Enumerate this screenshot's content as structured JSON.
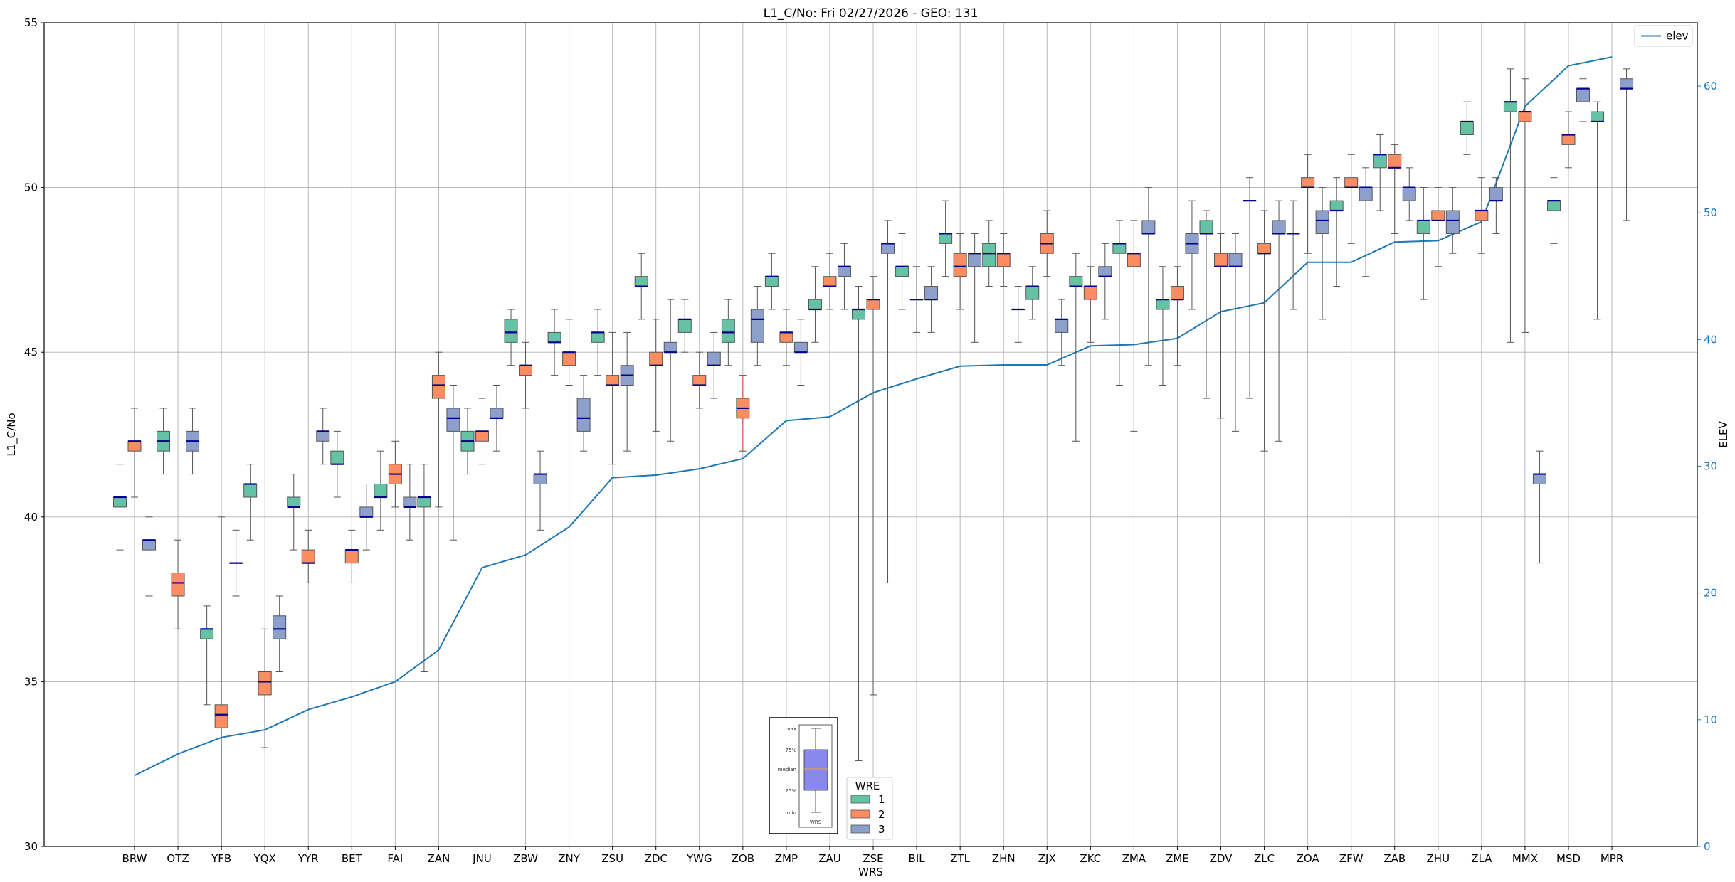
{
  "chart_data": {
    "type": "box",
    "title": "L1_C/No: Fri 02/27/2026 - GEO: 131",
    "xlabel": "WRS",
    "ylabel": "L1_C/No",
    "y2label": "ELEV",
    "ylim": [
      30,
      55
    ],
    "y2lim": [
      0,
      65
    ],
    "yticks": [
      30,
      35,
      40,
      45,
      50,
      55
    ],
    "y2ticks": [
      0,
      10,
      20,
      30,
      40,
      50,
      60
    ],
    "grid": true,
    "categories": [
      "BRW",
      "OTZ",
      "YFB",
      "YQX",
      "YYR",
      "BET",
      "FAI",
      "ZAN",
      "JNU",
      "ZBW",
      "ZNY",
      "ZSU",
      "ZDC",
      "YWG",
      "ZOB",
      "ZMP",
      "ZAU",
      "ZSE",
      "BIL",
      "ZTL",
      "ZHN",
      "ZJX",
      "ZKC",
      "ZMA",
      "ZME",
      "ZDV",
      "ZLC",
      "ZOA",
      "ZFW",
      "ZAB",
      "ZHU",
      "ZLA",
      "MMX",
      "MSD",
      "MPR"
    ],
    "wre_legend": {
      "title": "WRE",
      "entries": [
        "1",
        "2",
        "3"
      ]
    },
    "line_legend": "elev",
    "colors": {
      "wre1": "#66c2a5",
      "wre2": "#fc8d62",
      "wre3": "#8da0cb",
      "median": "#00008b",
      "elev": "#1f77b4",
      "whisker": "#555555",
      "highlight_whisker": "#e03030"
    },
    "box_key": {
      "labels": [
        "max",
        "75%",
        "median",
        "25%",
        "min"
      ],
      "xlabel": "WRS"
    },
    "elev": [
      5.6,
      7.3,
      8.6,
      9.2,
      10.8,
      11.8,
      13.0,
      15.5,
      22.0,
      23.0,
      25.2,
      29.1,
      29.3,
      29.8,
      30.6,
      33.6,
      33.9,
      35.8,
      36.9,
      37.9,
      38.0,
      38.0,
      39.5,
      39.6,
      40.1,
      42.2,
      42.9,
      46.1,
      46.1,
      47.7,
      47.8,
      49.3,
      58.4,
      61.6,
      62.3
    ],
    "boxes": [
      {
        "site": "BRW",
        "wre": 1,
        "min": 39.0,
        "q1": 40.3,
        "median": 40.6,
        "q3": 40.6,
        "max": 41.6
      },
      {
        "site": "BRW",
        "wre": 2,
        "min": 40.6,
        "q1": 42.0,
        "median": 42.3,
        "q3": 42.3,
        "max": 43.3
      },
      {
        "site": "BRW",
        "wre": 3,
        "min": 37.6,
        "q1": 39.0,
        "median": 39.3,
        "q3": 39.3,
        "max": 40.0
      },
      {
        "site": "OTZ",
        "wre": 1,
        "min": 41.3,
        "q1": 42.0,
        "median": 42.3,
        "q3": 42.6,
        "max": 43.3
      },
      {
        "site": "OTZ",
        "wre": 2,
        "min": 36.6,
        "q1": 37.6,
        "median": 38.0,
        "q3": 38.3,
        "max": 39.3
      },
      {
        "site": "OTZ",
        "wre": 3,
        "min": 41.3,
        "q1": 42.0,
        "median": 42.3,
        "q3": 42.6,
        "max": 43.3
      },
      {
        "site": "YFB",
        "wre": 1,
        "min": 34.3,
        "q1": 36.3,
        "median": 36.6,
        "q3": 36.6,
        "max": 37.3
      },
      {
        "site": "YFB",
        "wre": 2,
        "min": 30.0,
        "q1": 33.6,
        "median": 34.0,
        "q3": 34.3,
        "max": 40.0
      },
      {
        "site": "YFB",
        "wre": 3,
        "min": 37.6,
        "q1": 38.6,
        "median": 38.6,
        "q3": 38.6,
        "max": 39.6
      },
      {
        "site": "YQX",
        "wre": 1,
        "min": 39.3,
        "q1": 40.6,
        "median": 41.0,
        "q3": 41.0,
        "max": 41.6
      },
      {
        "site": "YQX",
        "wre": 2,
        "min": 33.0,
        "q1": 34.6,
        "median": 35.0,
        "q3": 35.3,
        "max": 36.6
      },
      {
        "site": "YQX",
        "wre": 3,
        "min": 35.3,
        "q1": 36.3,
        "median": 36.6,
        "q3": 37.0,
        "max": 37.6
      },
      {
        "site": "YYR",
        "wre": 1,
        "min": 39.0,
        "q1": 40.3,
        "median": 40.3,
        "q3": 40.6,
        "max": 41.3
      },
      {
        "site": "YYR",
        "wre": 2,
        "min": 38.0,
        "q1": 38.6,
        "median": 38.6,
        "q3": 39.0,
        "max": 39.6
      },
      {
        "site": "YYR",
        "wre": 3,
        "min": 41.6,
        "q1": 42.3,
        "median": 42.6,
        "q3": 42.6,
        "max": 43.3
      },
      {
        "site": "BET",
        "wre": 1,
        "min": 40.6,
        "q1": 41.6,
        "median": 41.6,
        "q3": 42.0,
        "max": 42.6
      },
      {
        "site": "BET",
        "wre": 2,
        "min": 38.0,
        "q1": 38.6,
        "median": 39.0,
        "q3": 39.0,
        "max": 39.6
      },
      {
        "site": "BET",
        "wre": 3,
        "min": 39.0,
        "q1": 40.0,
        "median": 40.0,
        "q3": 40.3,
        "max": 41.0
      },
      {
        "site": "FAI",
        "wre": 1,
        "min": 39.6,
        "q1": 40.6,
        "median": 40.6,
        "q3": 41.0,
        "max": 42.0
      },
      {
        "site": "FAI",
        "wre": 2,
        "min": 40.3,
        "q1": 41.0,
        "median": 41.3,
        "q3": 41.6,
        "max": 42.3
      },
      {
        "site": "FAI",
        "wre": 3,
        "min": 39.3,
        "q1": 40.3,
        "median": 40.3,
        "q3": 40.6,
        "max": 41.6
      },
      {
        "site": "ZAN",
        "wre": 1,
        "min": 35.3,
        "q1": 40.3,
        "median": 40.6,
        "q3": 40.6,
        "max": 41.6
      },
      {
        "site": "ZAN",
        "wre": 2,
        "min": 40.3,
        "q1": 43.6,
        "median": 44.0,
        "q3": 44.3,
        "max": 45.0
      },
      {
        "site": "ZAN",
        "wre": 3,
        "min": 39.3,
        "q1": 42.6,
        "median": 43.0,
        "q3": 43.3,
        "max": 44.0
      },
      {
        "site": "JNU",
        "wre": 1,
        "min": 41.3,
        "q1": 42.0,
        "median": 42.3,
        "q3": 42.6,
        "max": 43.3
      },
      {
        "site": "JNU",
        "wre": 2,
        "min": 41.6,
        "q1": 42.3,
        "median": 42.6,
        "q3": 42.6,
        "max": 43.6
      },
      {
        "site": "JNU",
        "wre": 3,
        "min": 42.0,
        "q1": 43.0,
        "median": 43.0,
        "q3": 43.3,
        "max": 44.0
      },
      {
        "site": "ZBW",
        "wre": 1,
        "min": 44.6,
        "q1": 45.3,
        "median": 45.6,
        "q3": 46.0,
        "max": 46.3
      },
      {
        "site": "ZBW",
        "wre": 2,
        "min": 43.3,
        "q1": 44.3,
        "median": 44.6,
        "q3": 44.6,
        "max": 45.3
      },
      {
        "site": "ZBW",
        "wre": 3,
        "min": 39.6,
        "q1": 41.0,
        "median": 41.3,
        "q3": 41.3,
        "max": 42.0
      },
      {
        "site": "ZNY",
        "wre": 1,
        "min": 44.3,
        "q1": 45.3,
        "median": 45.3,
        "q3": 45.6,
        "max": 46.3
      },
      {
        "site": "ZNY",
        "wre": 2,
        "min": 44.0,
        "q1": 44.6,
        "median": 45.0,
        "q3": 45.0,
        "max": 46.0
      },
      {
        "site": "ZNY",
        "wre": 3,
        "min": 42.0,
        "q1": 42.6,
        "median": 43.0,
        "q3": 43.6,
        "max": 44.3
      },
      {
        "site": "ZSU",
        "wre": 1,
        "min": 44.3,
        "q1": 45.3,
        "median": 45.6,
        "q3": 45.6,
        "max": 46.3
      },
      {
        "site": "ZSU",
        "wre": 2,
        "min": 41.6,
        "q1": 44.0,
        "median": 44.0,
        "q3": 44.3,
        "max": 45.6
      },
      {
        "site": "ZSU",
        "wre": 3,
        "min": 42.0,
        "q1": 44.0,
        "median": 44.3,
        "q3": 44.6,
        "max": 45.6
      },
      {
        "site": "ZDC",
        "wre": 1,
        "min": 46.0,
        "q1": 47.0,
        "median": 47.0,
        "q3": 47.3,
        "max": 48.0
      },
      {
        "site": "ZDC",
        "wre": 2,
        "min": 42.6,
        "q1": 44.6,
        "median": 44.6,
        "q3": 45.0,
        "max": 46.0
      },
      {
        "site": "ZDC",
        "wre": 3,
        "min": 42.3,
        "q1": 45.0,
        "median": 45.0,
        "q3": 45.3,
        "max": 46.6
      },
      {
        "site": "YWG",
        "wre": 1,
        "min": 45.0,
        "q1": 45.6,
        "median": 46.0,
        "q3": 46.0,
        "max": 46.6
      },
      {
        "site": "YWG",
        "wre": 2,
        "min": 43.3,
        "q1": 44.0,
        "median": 44.0,
        "q3": 44.3,
        "max": 45.0
      },
      {
        "site": "YWG",
        "wre": 3,
        "min": 43.6,
        "q1": 44.6,
        "median": 44.6,
        "q3": 45.0,
        "max": 45.6
      },
      {
        "site": "ZOB",
        "wre": 1,
        "min": 44.6,
        "q1": 45.3,
        "median": 45.6,
        "q3": 46.0,
        "max": 46.6
      },
      {
        "site": "ZOB",
        "wre": 2,
        "min": 42.0,
        "q1": 43.0,
        "median": 43.3,
        "q3": 43.6,
        "max": 44.3
      },
      {
        "site": "ZOB",
        "wre": 3,
        "min": 44.6,
        "q1": 45.3,
        "median": 46.0,
        "q3": 46.3,
        "max": 47.0
      },
      {
        "site": "ZMP",
        "wre": 1,
        "min": 46.3,
        "q1": 47.0,
        "median": 47.3,
        "q3": 47.3,
        "max": 48.0
      },
      {
        "site": "ZMP",
        "wre": 2,
        "min": 44.6,
        "q1": 45.3,
        "median": 45.6,
        "q3": 45.6,
        "max": 46.3
      },
      {
        "site": "ZMP",
        "wre": 3,
        "min": 44.0,
        "q1": 45.0,
        "median": 45.0,
        "q3": 45.3,
        "max": 46.0
      },
      {
        "site": "ZAU",
        "wre": 1,
        "min": 45.3,
        "q1": 46.3,
        "median": 46.3,
        "q3": 46.6,
        "max": 47.6
      },
      {
        "site": "ZAU",
        "wre": 2,
        "min": 46.3,
        "q1": 47.0,
        "median": 47.0,
        "q3": 47.3,
        "max": 48.0
      },
      {
        "site": "ZAU",
        "wre": 3,
        "min": 46.3,
        "q1": 47.3,
        "median": 47.6,
        "q3": 47.6,
        "max": 48.3
      },
      {
        "site": "ZSE",
        "wre": 1,
        "min": 32.6,
        "q1": 46.0,
        "median": 46.3,
        "q3": 46.3,
        "max": 47.0
      },
      {
        "site": "ZSE",
        "wre": 2,
        "min": 34.6,
        "q1": 46.3,
        "median": 46.6,
        "q3": 46.6,
        "max": 47.3
      },
      {
        "site": "ZSE",
        "wre": 3,
        "min": 38.0,
        "q1": 48.0,
        "median": 48.3,
        "q3": 48.3,
        "max": 49.0
      },
      {
        "site": "BIL",
        "wre": 1,
        "min": 46.3,
        "q1": 47.3,
        "median": 47.6,
        "q3": 47.6,
        "max": 48.6
      },
      {
        "site": "BIL",
        "wre": 2,
        "min": 45.6,
        "q1": 46.6,
        "median": 46.6,
        "q3": 46.6,
        "max": 47.6
      },
      {
        "site": "BIL",
        "wre": 3,
        "min": 45.6,
        "q1": 46.6,
        "median": 46.6,
        "q3": 47.0,
        "max": 47.6
      },
      {
        "site": "ZTL",
        "wre": 1,
        "min": 47.3,
        "q1": 48.3,
        "median": 48.6,
        "q3": 48.6,
        "max": 49.6
      },
      {
        "site": "ZTL",
        "wre": 2,
        "min": 46.3,
        "q1": 47.3,
        "median": 47.6,
        "q3": 48.0,
        "max": 48.6
      },
      {
        "site": "ZTL",
        "wre": 3,
        "min": 45.3,
        "q1": 47.6,
        "median": 48.0,
        "q3": 48.0,
        "max": 48.6
      },
      {
        "site": "ZHN",
        "wre": 1,
        "min": 47.0,
        "q1": 47.6,
        "median": 48.0,
        "q3": 48.3,
        "max": 49.0
      },
      {
        "site": "ZHN",
        "wre": 2,
        "min": 47.0,
        "q1": 47.6,
        "median": 48.0,
        "q3": 48.0,
        "max": 48.6
      },
      {
        "site": "ZHN",
        "wre": 3,
        "min": 45.3,
        "q1": 46.3,
        "median": 46.3,
        "q3": 46.3,
        "max": 47.0
      },
      {
        "site": "ZJX",
        "wre": 1,
        "min": 46.0,
        "q1": 46.6,
        "median": 47.0,
        "q3": 47.0,
        "max": 47.6
      },
      {
        "site": "ZJX",
        "wre": 2,
        "min": 47.3,
        "q1": 48.0,
        "median": 48.3,
        "q3": 48.6,
        "max": 49.3
      },
      {
        "site": "ZJX",
        "wre": 3,
        "min": 44.6,
        "q1": 45.6,
        "median": 46.0,
        "q3": 46.0,
        "max": 46.6
      },
      {
        "site": "ZKC",
        "wre": 1,
        "min": 42.3,
        "q1": 47.0,
        "median": 47.0,
        "q3": 47.3,
        "max": 48.0
      },
      {
        "site": "ZKC",
        "wre": 2,
        "min": 45.3,
        "q1": 46.6,
        "median": 47.0,
        "q3": 47.0,
        "max": 47.6
      },
      {
        "site": "ZKC",
        "wre": 3,
        "min": 46.0,
        "q1": 47.3,
        "median": 47.3,
        "q3": 47.6,
        "max": 48.3
      },
      {
        "site": "ZMA",
        "wre": 1,
        "min": 44.0,
        "q1": 48.0,
        "median": 48.3,
        "q3": 48.3,
        "max": 49.0
      },
      {
        "site": "ZMA",
        "wre": 2,
        "min": 42.6,
        "q1": 47.6,
        "median": 48.0,
        "q3": 48.0,
        "max": 49.0
      },
      {
        "site": "ZMA",
        "wre": 3,
        "min": 44.6,
        "q1": 48.6,
        "median": 48.6,
        "q3": 49.0,
        "max": 50.0
      },
      {
        "site": "ZME",
        "wre": 1,
        "min": 44.0,
        "q1": 46.3,
        "median": 46.6,
        "q3": 46.6,
        "max": 47.6
      },
      {
        "site": "ZME",
        "wre": 2,
        "min": 44.6,
        "q1": 46.6,
        "median": 46.6,
        "q3": 47.0,
        "max": 47.6
      },
      {
        "site": "ZME",
        "wre": 3,
        "min": 46.3,
        "q1": 48.0,
        "median": 48.3,
        "q3": 48.6,
        "max": 49.6
      },
      {
        "site": "ZDV",
        "wre": 1,
        "min": 43.6,
        "q1": 48.6,
        "median": 48.6,
        "q3": 49.0,
        "max": 49.3
      },
      {
        "site": "ZDV",
        "wre": 2,
        "min": 43.0,
        "q1": 47.6,
        "median": 47.6,
        "q3": 48.0,
        "max": 48.6
      },
      {
        "site": "ZDV",
        "wre": 3,
        "min": 42.6,
        "q1": 47.6,
        "median": 47.6,
        "q3": 48.0,
        "max": 48.6
      },
      {
        "site": "ZLC",
        "wre": 1,
        "min": 43.6,
        "q1": 49.6,
        "median": 49.6,
        "q3": 49.6,
        "max": 50.3
      },
      {
        "site": "ZLC",
        "wre": 2,
        "min": 42.0,
        "q1": 48.0,
        "median": 48.0,
        "q3": 48.3,
        "max": 49.3
      },
      {
        "site": "ZLC",
        "wre": 3,
        "min": 42.3,
        "q1": 48.6,
        "median": 48.6,
        "q3": 49.0,
        "max": 49.6
      },
      {
        "site": "ZOA",
        "wre": 1,
        "min": 46.3,
        "q1": 48.6,
        "median": 48.6,
        "q3": 48.6,
        "max": 49.6
      },
      {
        "site": "ZOA",
        "wre": 2,
        "min": 48.0,
        "q1": 50.0,
        "median": 50.0,
        "q3": 50.3,
        "max": 51.0
      },
      {
        "site": "ZOA",
        "wre": 3,
        "min": 46.0,
        "q1": 48.6,
        "median": 49.0,
        "q3": 49.3,
        "max": 50.0
      },
      {
        "site": "ZFW",
        "wre": 1,
        "min": 47.0,
        "q1": 49.3,
        "median": 49.3,
        "q3": 49.6,
        "max": 50.3
      },
      {
        "site": "ZFW",
        "wre": 2,
        "min": 48.3,
        "q1": 50.0,
        "median": 50.0,
        "q3": 50.3,
        "max": 51.0
      },
      {
        "site": "ZFW",
        "wre": 3,
        "min": 47.3,
        "q1": 49.6,
        "median": 50.0,
        "q3": 50.0,
        "max": 50.6
      },
      {
        "site": "ZAB",
        "wre": 1,
        "min": 49.3,
        "q1": 50.6,
        "median": 51.0,
        "q3": 51.0,
        "max": 51.6
      },
      {
        "site": "ZAB",
        "wre": 2,
        "min": 48.6,
        "q1": 50.6,
        "median": 50.6,
        "q3": 51.0,
        "max": 51.3
      },
      {
        "site": "ZAB",
        "wre": 3,
        "min": 49.0,
        "q1": 49.6,
        "median": 50.0,
        "q3": 50.0,
        "max": 50.6
      },
      {
        "site": "ZHU",
        "wre": 1,
        "min": 46.6,
        "q1": 48.6,
        "median": 49.0,
        "q3": 49.0,
        "max": 50.0
      },
      {
        "site": "ZHU",
        "wre": 2,
        "min": 47.6,
        "q1": 49.0,
        "median": 49.0,
        "q3": 49.3,
        "max": 50.0
      },
      {
        "site": "ZHU",
        "wre": 3,
        "min": 48.0,
        "q1": 48.6,
        "median": 49.0,
        "q3": 49.3,
        "max": 50.0
      },
      {
        "site": "ZLA",
        "wre": 1,
        "min": 51.0,
        "q1": 51.6,
        "median": 52.0,
        "q3": 52.0,
        "max": 52.6
      },
      {
        "site": "ZLA",
        "wre": 2,
        "min": 48.0,
        "q1": 49.0,
        "median": 49.3,
        "q3": 49.3,
        "max": 50.3
      },
      {
        "site": "ZLA",
        "wre": 3,
        "min": 48.6,
        "q1": 49.6,
        "median": 49.6,
        "q3": 50.0,
        "max": 50.3
      },
      {
        "site": "MMX",
        "wre": 1,
        "min": 45.3,
        "q1": 52.3,
        "median": 52.6,
        "q3": 52.6,
        "max": 53.6
      },
      {
        "site": "MMX",
        "wre": 2,
        "min": 45.6,
        "q1": 52.0,
        "median": 52.3,
        "q3": 52.3,
        "max": 53.3
      },
      {
        "site": "MMX",
        "wre": 3,
        "min": 38.6,
        "q1": 41.0,
        "median": 41.3,
        "q3": 41.3,
        "max": 42.0
      },
      {
        "site": "MSD",
        "wre": 1,
        "min": 48.3,
        "q1": 49.3,
        "median": 49.6,
        "q3": 49.6,
        "max": 50.3
      },
      {
        "site": "MSD",
        "wre": 2,
        "min": 50.6,
        "q1": 51.3,
        "median": 51.6,
        "q3": 51.6,
        "max": 52.3
      },
      {
        "site": "MSD",
        "wre": 3,
        "min": 52.0,
        "q1": 52.6,
        "median": 53.0,
        "q3": 53.0,
        "max": 53.3
      },
      {
        "site": "MPR",
        "wre": 1,
        "min": 46.0,
        "q1": 52.0,
        "median": 52.0,
        "q3": 52.3,
        "max": 52.6
      },
      {
        "site": "MPR",
        "wre": 3,
        "min": 49.0,
        "q1": 53.0,
        "median": 53.0,
        "q3": 53.3,
        "max": 53.6
      }
    ]
  }
}
